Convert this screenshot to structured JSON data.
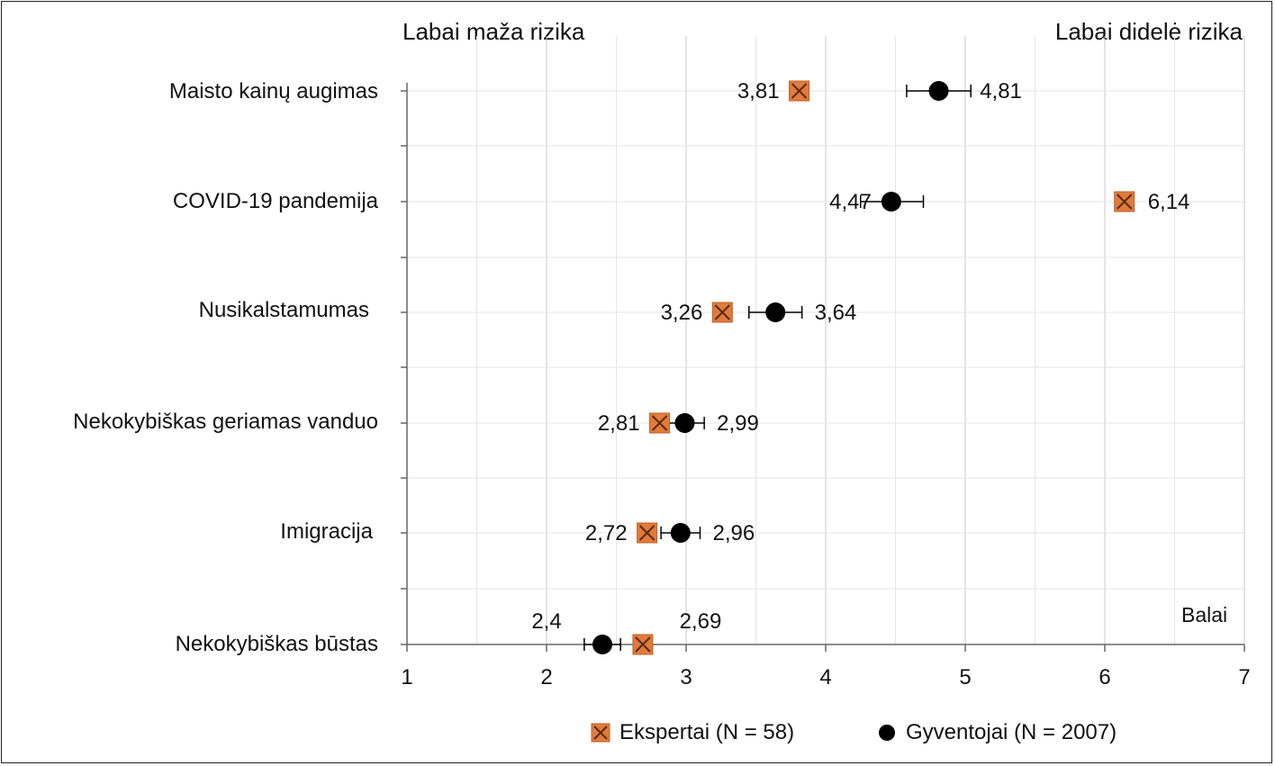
{
  "chart_data": {
    "type": "scatter",
    "header_left": "Labai maža rizika",
    "header_right": "Labai didelė rizika",
    "xunit": "Balai",
    "xlim": [
      1,
      7
    ],
    "xticks": [
      "1",
      "2",
      "3",
      "4",
      "5",
      "6",
      "7"
    ],
    "grid": true,
    "legend_position": "bottom",
    "categories": [
      "Maisto kainų augimas",
      "COVID-19 pandemija",
      "Nusikalstamumas",
      "Nekokybiškas geriamas vanduo",
      "Imigracija",
      "Nekokybiškas būstas"
    ],
    "series": [
      {
        "name": "Ekspertai (N = 58)",
        "marker": "square-x",
        "color": "#E07B3C",
        "values": [
          3.81,
          6.14,
          3.26,
          2.81,
          2.72,
          2.69
        ],
        "labels": [
          "3,81",
          "6,14",
          "3,26",
          "2,81",
          "2,72",
          "2,69"
        ]
      },
      {
        "name": "Gyventojai (N = 2007)",
        "marker": "circle",
        "color": "#000000",
        "values": [
          4.81,
          4.47,
          3.64,
          2.99,
          2.96,
          2.4
        ],
        "error": [
          [
            4.58,
            5.04
          ],
          [
            4.25,
            4.7
          ],
          [
            3.45,
            3.83
          ],
          [
            2.86,
            3.13
          ],
          [
            2.82,
            3.1
          ],
          [
            2.27,
            2.53
          ]
        ],
        "labels": [
          "4,81",
          "4,47",
          "3,64",
          "2,99",
          "2,96",
          "2,4"
        ]
      }
    ]
  }
}
